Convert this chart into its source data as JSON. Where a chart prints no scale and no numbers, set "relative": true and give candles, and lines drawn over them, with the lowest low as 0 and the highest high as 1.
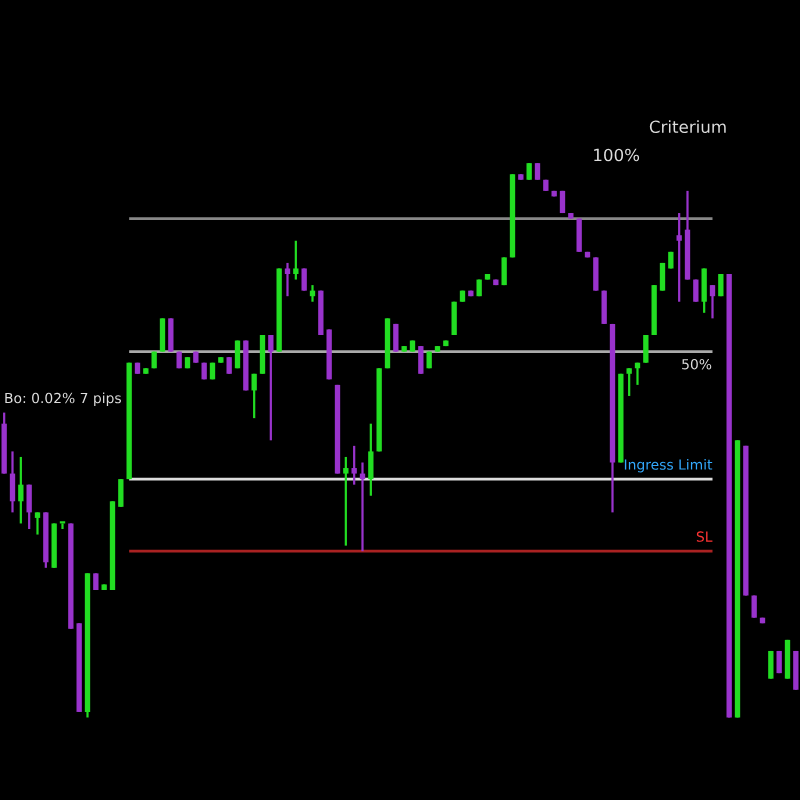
{
  "chart_data": {
    "type": "candlestick",
    "relative": true,
    "categories": [
      null,
      null,
      null,
      null,
      null,
      null,
      null,
      null,
      null,
      null,
      null,
      null,
      null,
      null,
      null,
      null,
      null,
      null,
      null,
      null,
      null,
      null,
      null,
      null,
      null,
      null,
      null,
      null,
      null,
      null,
      null,
      null,
      null,
      null,
      null,
      null,
      null,
      null,
      null,
      null,
      null,
      null,
      null,
      null,
      null,
      null,
      null,
      null,
      null,
      null,
      null,
      null,
      null,
      null,
      null,
      null,
      null,
      null,
      null,
      null,
      null,
      null,
      null,
      null,
      null,
      null,
      null,
      null,
      null,
      null,
      null,
      null,
      null,
      null,
      null,
      null,
      null,
      null,
      null,
      null,
      null,
      null,
      null,
      null,
      null,
      null,
      null,
      null,
      null,
      null,
      null,
      null,
      null,
      null,
      null,
      null
    ],
    "ohlc": [
      [
        0.53,
        0.55,
        0.44,
        0.44
      ],
      [
        0.44,
        0.48,
        0.37,
        0.39
      ],
      [
        0.39,
        0.47,
        0.35,
        0.42
      ],
      [
        0.42,
        0.42,
        0.34,
        0.37
      ],
      [
        0.36,
        0.37,
        0.33,
        0.37
      ],
      [
        0.37,
        0.37,
        0.27,
        0.28
      ],
      [
        0.27,
        0.35,
        0.27,
        0.35
      ],
      [
        0.35,
        0.35,
        0.34,
        0.35
      ],
      [
        0.35,
        0.35,
        0.16,
        0.16
      ],
      [
        0.17,
        0.17,
        0.01,
        0.01
      ],
      [
        0.01,
        0.26,
        0,
        0.26
      ],
      [
        0.26,
        0.26,
        0.23,
        0.23
      ],
      [
        0.23,
        0.24,
        0.23,
        0.24
      ],
      [
        0.23,
        0.39,
        0.23,
        0.39
      ],
      [
        0.38,
        0.43,
        0.38,
        0.43
      ],
      [
        0.43,
        0.64,
        0.43,
        0.64
      ],
      [
        0.64,
        0.64,
        0.62,
        0.62
      ],
      [
        0.62,
        0.63,
        0.62,
        0.63
      ],
      [
        0.63,
        0.66,
        0.63,
        0.66
      ],
      [
        0.66,
        0.72,
        0.66,
        0.72
      ],
      [
        0.72,
        0.72,
        0.66,
        0.66
      ],
      [
        0.66,
        0.66,
        0.63,
        0.63
      ],
      [
        0.63,
        0.65,
        0.63,
        0.65
      ],
      [
        0.66,
        0.66,
        0.64,
        0.64
      ],
      [
        0.64,
        0.64,
        0.61,
        0.61
      ],
      [
        0.61,
        0.64,
        0.61,
        0.64
      ],
      [
        0.64,
        0.65,
        0.64,
        0.65
      ],
      [
        0.65,
        0.65,
        0.62,
        0.62
      ],
      [
        0.63,
        0.68,
        0.63,
        0.68
      ],
      [
        0.68,
        0.68,
        0.59,
        0.59
      ],
      [
        0.59,
        0.62,
        0.54,
        0.62
      ],
      [
        0.62,
        0.69,
        0.62,
        0.69
      ],
      [
        0.69,
        0.69,
        0.5,
        0.66
      ],
      [
        0.66,
        0.81,
        0.66,
        0.81
      ],
      [
        0.81,
        0.82,
        0.76,
        0.8
      ],
      [
        0.8,
        0.86,
        0.79,
        0.81
      ],
      [
        0.81,
        0.81,
        0.77,
        0.77
      ],
      [
        0.76,
        0.78,
        0.75,
        0.77
      ],
      [
        0.77,
        0.77,
        0.69,
        0.69
      ],
      [
        0.7,
        0.7,
        0.61,
        0.61
      ],
      [
        0.6,
        0.6,
        0.44,
        0.44
      ],
      [
        0.44,
        0.47,
        0.31,
        0.45
      ],
      [
        0.45,
        0.49,
        0.42,
        0.44
      ],
      [
        0.44,
        0.46,
        0.3,
        0.43
      ],
      [
        0.43,
        0.53,
        0.4,
        0.48
      ],
      [
        0.48,
        0.63,
        0.48,
        0.63
      ],
      [
        0.63,
        0.72,
        0.63,
        0.72
      ],
      [
        0.71,
        0.71,
        0.66,
        0.66
      ],
      [
        0.66,
        0.67,
        0.66,
        0.67
      ],
      [
        0.66,
        0.68,
        0.66,
        0.68
      ],
      [
        0.67,
        0.67,
        0.62,
        0.62
      ],
      [
        0.63,
        0.66,
        0.63,
        0.66
      ],
      [
        0.66,
        0.67,
        0.66,
        0.67
      ],
      [
        0.67,
        0.68,
        0.67,
        0.68
      ],
      [
        0.69,
        0.75,
        0.69,
        0.75
      ],
      [
        0.75,
        0.77,
        0.75,
        0.77
      ],
      [
        0.77,
        0.77,
        0.76,
        0.76
      ],
      [
        0.76,
        0.79,
        0.76,
        0.79
      ],
      [
        0.79,
        0.8,
        0.79,
        0.8
      ],
      [
        0.79,
        0.79,
        0.78,
        0.78
      ],
      [
        0.78,
        0.83,
        0.78,
        0.83
      ],
      [
        0.83,
        0.98,
        0.83,
        0.98
      ],
      [
        0.98,
        0.98,
        0.97,
        0.97
      ],
      [
        0.97,
        1,
        0.97,
        1
      ],
      [
        1,
        1,
        0.97,
        0.97
      ],
      [
        0.97,
        0.97,
        0.95,
        0.95
      ],
      [
        0.95,
        0.95,
        0.94,
        0.94
      ],
      [
        0.95,
        0.95,
        0.91,
        0.91
      ],
      [
        0.91,
        0.91,
        0.9,
        0.9
      ],
      [
        0.9,
        0.9,
        0.84,
        0.84
      ],
      [
        0.84,
        0.84,
        0.83,
        0.83
      ],
      [
        0.83,
        0.83,
        0.77,
        0.77
      ],
      [
        0.77,
        0.77,
        0.71,
        0.71
      ],
      [
        0.71,
        0.71,
        0.37,
        0.46
      ],
      [
        0.46,
        0.62,
        0.46,
        0.62
      ],
      [
        0.62,
        0.63,
        0.58,
        0.63
      ],
      [
        0.63,
        0.64,
        0.6,
        0.64
      ],
      [
        0.64,
        0.69,
        0.64,
        0.69
      ],
      [
        0.69,
        0.78,
        0.69,
        0.78
      ],
      [
        0.77,
        0.82,
        0.77,
        0.82
      ],
      [
        0.81,
        0.84,
        0.81,
        0.84
      ],
      [
        0.87,
        0.91,
        0.75,
        0.86
      ],
      [
        0.88,
        0.95,
        0.79,
        0.79
      ],
      [
        0.79,
        0.79,
        0.75,
        0.75
      ],
      [
        0.75,
        0.81,
        0.73,
        0.81
      ],
      [
        0.78,
        0.78,
        0.72,
        0.76
      ],
      [
        0.76,
        0.8,
        0.76,
        0.8
      ],
      [
        0.8,
        0.8,
        0,
        0
      ],
      [
        0,
        0.5,
        0,
        0.5
      ],
      [
        0.49,
        0.49,
        0.22,
        0.22
      ],
      [
        0.22,
        0.22,
        0.18,
        0.18
      ],
      [
        0.18,
        0.18,
        0.17,
        0.17
      ],
      [
        0.07,
        0.12,
        0.07,
        0.12
      ],
      [
        0.12,
        0.12,
        0.08,
        0.08
      ],
      [
        0.07,
        0.14,
        0.07,
        0.14
      ],
      [
        0.12,
        0.12,
        0.05,
        0.05
      ]
    ],
    "colors": [
      "#9933cc",
      "#9933cc",
      "#22dd22",
      "#9933cc",
      "#22dd22",
      "#9933cc",
      "#22dd22",
      "#22dd22",
      "#9933cc",
      "#9933cc",
      "#22dd22",
      "#9933cc",
      "#22dd22",
      "#22dd22",
      "#22dd22",
      "#22dd22",
      "#9933cc",
      "#22dd22",
      "#22dd22",
      "#22dd22",
      "#9933cc",
      "#9933cc",
      "#22dd22",
      "#9933cc",
      "#9933cc",
      "#22dd22",
      "#22dd22",
      "#9933cc",
      "#22dd22",
      "#9933cc",
      "#22dd22",
      "#22dd22",
      "#9933cc",
      "#22dd22",
      "#9933cc",
      "#22dd22",
      "#9933cc",
      "#22dd22",
      "#9933cc",
      "#9933cc",
      "#9933cc",
      "#22dd22",
      "#9933cc",
      "#9933cc",
      "#22dd22",
      "#22dd22",
      "#22dd22",
      "#9933cc",
      "#22dd22",
      "#22dd22",
      "#9933cc",
      "#22dd22",
      "#22dd22",
      "#22dd22",
      "#22dd22",
      "#22dd22",
      "#9933cc",
      "#22dd22",
      "#22dd22",
      "#9933cc",
      "#22dd22",
      "#22dd22",
      "#9933cc",
      "#22dd22",
      "#9933cc",
      "#9933cc",
      "#9933cc",
      "#9933cc",
      "#9933cc",
      "#9933cc",
      "#9933cc",
      "#9933cc",
      "#9933cc",
      "#9933cc",
      "#22dd22",
      "#22dd22",
      "#22dd22",
      "#22dd22",
      "#22dd22",
      "#22dd22",
      "#22dd22",
      "#9933cc",
      "#9933cc",
      "#9933cc",
      "#22dd22",
      "#9933cc",
      "#22dd22",
      "#9933cc",
      "#22dd22",
      "#9933cc",
      "#9933cc",
      "#9933cc",
      "#22dd22",
      "#9933cc",
      "#22dd22",
      "#9933cc"
    ],
    "ref_lines": [
      {
        "axis": "y",
        "value": 0.9,
        "color": "#888888"
      },
      {
        "axis": "y",
        "value": 0.66,
        "color": "#aaaaaa"
      },
      {
        "axis": "y",
        "value": 0.43,
        "label": "Ingress Limit",
        "color": "#dddddd"
      },
      {
        "axis": "y",
        "value": 0.3,
        "label": "SL",
        "color": "#aa2222"
      }
    ],
    "annotations": [
      "Criterium",
      "100%",
      "50%",
      "Bo: 0.02% 7 pips"
    ],
    "grid": false,
    "legend": false
  }
}
